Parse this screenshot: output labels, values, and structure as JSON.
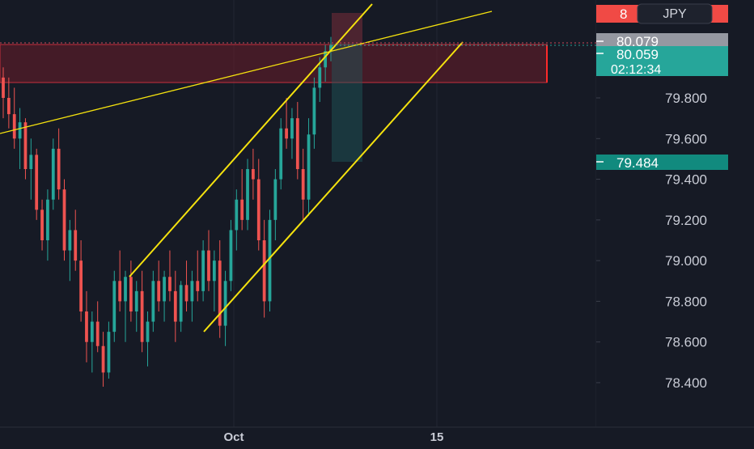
{
  "chart_data": {
    "type": "candlestick",
    "symbol_badge": "JPY",
    "y_ticks": [
      "79.800",
      "79.600",
      "79.400",
      "79.200",
      "79.000",
      "78.800",
      "78.600",
      "78.400"
    ],
    "x_ticks": [
      "Oct",
      "15"
    ],
    "price_tags": {
      "alert": "8",
      "last": "80.079",
      "current": "80.059",
      "countdown": "02:12:34",
      "target": "79.484"
    },
    "ylim": [
      78.3,
      80.35
    ],
    "candles": [
      [
        79.9,
        79.95,
        79.7,
        79.8
      ],
      [
        79.8,
        79.9,
        79.65,
        79.72
      ],
      [
        79.72,
        79.85,
        79.55,
        79.6
      ],
      [
        79.6,
        79.75,
        79.45,
        79.68
      ],
      [
        79.68,
        79.7,
        79.4,
        79.45
      ],
      [
        79.45,
        79.6,
        79.3,
        79.52
      ],
      [
        79.52,
        79.55,
        79.2,
        79.25
      ],
      [
        79.25,
        79.3,
        79.05,
        79.1
      ],
      [
        79.1,
        79.35,
        79.0,
        79.3
      ],
      [
        79.3,
        79.6,
        79.25,
        79.55
      ],
      [
        79.55,
        79.65,
        79.3,
        79.35
      ],
      [
        79.35,
        79.4,
        79.0,
        79.05
      ],
      [
        79.05,
        79.2,
        78.9,
        79.15
      ],
      [
        79.15,
        79.25,
        78.95,
        79.0
      ],
      [
        79.0,
        79.1,
        78.7,
        78.75
      ],
      [
        78.75,
        78.85,
        78.5,
        78.6
      ],
      [
        78.6,
        78.75,
        78.45,
        78.7
      ],
      [
        78.7,
        78.8,
        78.55,
        78.58
      ],
      [
        78.58,
        78.65,
        78.38,
        78.45
      ],
      [
        78.45,
        78.7,
        78.42,
        78.65
      ],
      [
        78.65,
        78.95,
        78.6,
        78.9
      ],
      [
        78.9,
        79.05,
        78.75,
        78.8
      ],
      [
        78.8,
        78.95,
        78.6,
        78.92
      ],
      [
        78.92,
        79.0,
        78.7,
        78.75
      ],
      [
        78.75,
        78.9,
        78.65,
        78.85
      ],
      [
        78.85,
        78.95,
        78.55,
        78.6
      ],
      [
        78.6,
        78.75,
        78.48,
        78.7
      ],
      [
        78.7,
        78.95,
        78.65,
        78.9
      ],
      [
        78.9,
        79.0,
        78.75,
        78.8
      ],
      [
        78.8,
        78.95,
        78.7,
        78.92
      ],
      [
        78.92,
        79.05,
        78.8,
        78.85
      ],
      [
        78.85,
        78.95,
        78.6,
        78.7
      ],
      [
        78.7,
        78.9,
        78.65,
        78.88
      ],
      [
        78.88,
        79.0,
        78.75,
        78.8
      ],
      [
        78.8,
        78.95,
        78.7,
        78.9
      ],
      [
        78.9,
        79.05,
        78.8,
        78.85
      ],
      [
        78.85,
        79.1,
        78.8,
        79.05
      ],
      [
        79.05,
        79.15,
        78.85,
        78.9
      ],
      [
        78.9,
        79.05,
        78.75,
        79.0
      ],
      [
        79.0,
        79.1,
        78.62,
        78.68
      ],
      [
        78.68,
        78.95,
        78.58,
        78.9
      ],
      [
        78.9,
        79.2,
        78.85,
        79.15
      ],
      [
        79.15,
        79.35,
        79.05,
        79.3
      ],
      [
        79.3,
        79.45,
        79.15,
        79.2
      ],
      [
        79.2,
        79.5,
        79.15,
        79.45
      ],
      [
        79.45,
        79.55,
        79.3,
        79.4
      ],
      [
        79.4,
        79.5,
        79.05,
        79.1
      ],
      [
        79.1,
        79.2,
        78.72,
        78.8
      ],
      [
        78.8,
        79.25,
        78.75,
        79.2
      ],
      [
        79.2,
        79.45,
        79.1,
        79.4
      ],
      [
        79.4,
        79.7,
        79.35,
        79.65
      ],
      [
        79.65,
        79.8,
        79.55,
        79.6
      ],
      [
        79.6,
        79.75,
        79.5,
        79.7
      ],
      [
        79.7,
        79.78,
        79.4,
        79.45
      ],
      [
        79.45,
        79.55,
        79.2,
        79.3
      ],
      [
        79.3,
        79.7,
        79.22,
        79.62
      ],
      [
        79.62,
        79.9,
        79.55,
        79.85
      ],
      [
        79.85,
        80.0,
        79.78,
        79.95
      ],
      [
        79.95,
        80.06,
        79.88,
        80.03
      ],
      [
        80.03,
        80.1,
        79.98,
        80.059
      ]
    ],
    "zones": {
      "supply_zone": [
        79.88,
        80.07
      ],
      "position_risk": [
        80.06,
        80.22
      ],
      "position_reward": [
        79.484,
        80.06
      ]
    },
    "trendlines": "rising channel (two parallel lines) plus a long ascending trendline"
  }
}
